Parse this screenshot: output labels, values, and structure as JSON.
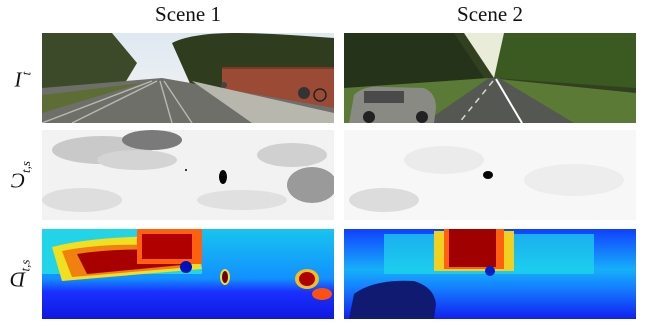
{
  "columns": {
    "scene1_title": "Scene 1",
    "scene2_title": "Scene 2"
  },
  "rows": [
    {
      "symbol": "I",
      "subscript": "t",
      "content": "RGB input image"
    },
    {
      "symbol": "C",
      "subscript": "t,s",
      "content": "confidence map"
    },
    {
      "symbol": "D",
      "subscript": "t,s",
      "content": "depth map"
    }
  ],
  "colors": {
    "depth_far": "#1a2bff",
    "depth_mid": "#12c8ff",
    "depth_near": "#a00000",
    "confidence_high": "#ffffff",
    "confidence_low": "#000000"
  }
}
